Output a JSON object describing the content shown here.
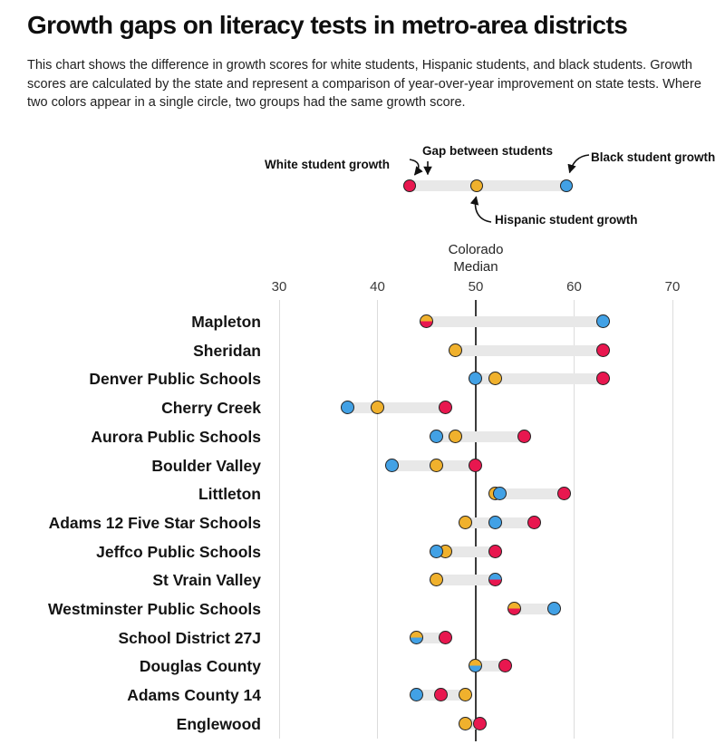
{
  "title": "Growth gaps on literacy tests in metro-area districts",
  "subtitle": "This chart shows the difference in growth scores for white students, Hispanic students, and black students. Growth scores are calculated by the state and represent a comparison of year-over-year improvement on state tests. Where two colors appear in a single circle, two groups had the same growth score.",
  "colors": {
    "white_students": "#e8174f",
    "hispanic_students": "#f0b12d",
    "black_students": "#42a1e5",
    "gap_bar": "#e8e8e8",
    "gridline": "#dcdcdc",
    "median_line": "#3b3b3b",
    "dot_border": "#222222"
  },
  "legend": {
    "white_label": "White student growth",
    "gap_label": "Gap between students",
    "black_label": "Black student growth",
    "hispanic_label": "Hispanic student growth"
  },
  "axis": {
    "median_label_line1": "Colorado",
    "median_label_line2": "Median"
  },
  "chart_data": {
    "type": "scatter",
    "variant": "dumbbell-dot-plot",
    "title": "Growth gaps on literacy tests in metro-area districts",
    "x_ticks": [
      30,
      40,
      50,
      60,
      70
    ],
    "xlim": [
      30,
      70
    ],
    "median": {
      "value": 50,
      "label": "Colorado Median"
    },
    "grid": "vertical-gridlines",
    "legend_position": "top-annotated-example",
    "groups": [
      {
        "key": "white",
        "label": "White student growth",
        "color_ref": "white_students"
      },
      {
        "key": "hispanic",
        "label": "Hispanic student growth",
        "color_ref": "hispanic_students"
      },
      {
        "key": "black",
        "label": "Black student growth",
        "color_ref": "black_students"
      }
    ],
    "districts": [
      {
        "name": "Mapleton",
        "white": 45,
        "hispanic": 45,
        "black": 63
      },
      {
        "name": "Sheridan",
        "white": 63,
        "hispanic": 48,
        "black": null
      },
      {
        "name": "Denver Public Schools",
        "white": 63,
        "hispanic": 52,
        "black": 50
      },
      {
        "name": "Cherry Creek",
        "white": 47,
        "hispanic": 40,
        "black": 37
      },
      {
        "name": "Aurora Public Schools",
        "white": 55,
        "hispanic": 48,
        "black": 46
      },
      {
        "name": "Boulder Valley",
        "white": 50,
        "hispanic": 46,
        "black": 41.5
      },
      {
        "name": "Littleton",
        "white": 59,
        "hispanic": 52,
        "black": 52.5
      },
      {
        "name": "Adams 12 Five Star Schools",
        "white": 56,
        "hispanic": 49,
        "black": 52
      },
      {
        "name": "Jeffco Public Schools",
        "white": 52,
        "hispanic": 47,
        "black": 46
      },
      {
        "name": "St Vrain Valley",
        "white": 52,
        "hispanic": 46,
        "black": 52
      },
      {
        "name": "Westminster Public Schools",
        "white": 54,
        "hispanic": 54,
        "black": 58
      },
      {
        "name": "School District 27J",
        "white": 47,
        "hispanic": 44,
        "black": 44
      },
      {
        "name": "Douglas County",
        "white": 53,
        "hispanic": 50,
        "black": 50
      },
      {
        "name": "Adams County 14",
        "white": 46.5,
        "hispanic": 49,
        "black": 44
      },
      {
        "name": "Englewood",
        "white": 50.5,
        "hispanic": 49,
        "black": null
      }
    ]
  }
}
